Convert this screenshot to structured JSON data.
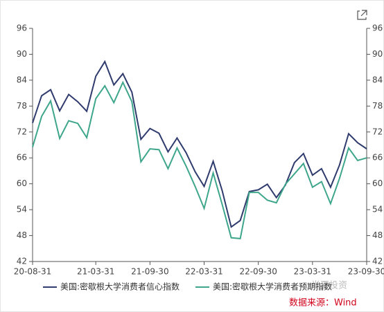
{
  "chart_data": {
    "type": "line",
    "categories": [
      "20-08-31",
      null,
      null,
      null,
      null,
      null,
      null,
      "21-03-31",
      null,
      null,
      null,
      null,
      null,
      "21-09-30",
      null,
      null,
      null,
      null,
      null,
      "22-03-31",
      null,
      null,
      null,
      null,
      null,
      "22-09-30",
      null,
      null,
      null,
      null,
      null,
      "23-03-31",
      null,
      null,
      null,
      null,
      null,
      "23-09-30"
    ],
    "series": [
      {
        "name": "美国:密歇根大学消费者信心指数",
        "color": "#2f3a6d",
        "values": [
          74.1,
          80.4,
          81.8,
          76.9,
          80.7,
          79.0,
          76.8,
          84.9,
          88.3,
          82.9,
          85.5,
          81.2,
          70.3,
          72.8,
          71.7,
          67.4,
          70.6,
          67.2,
          62.8,
          59.4,
          65.2,
          58.4,
          50.0,
          51.5,
          58.2,
          58.6,
          59.9,
          56.8,
          59.7,
          64.9,
          67.0,
          62.0,
          63.5,
          59.2,
          64.4,
          71.6,
          69.5,
          68.1
        ]
      },
      {
        "name": "美国:密歇根大学消费者预期指数",
        "color": "#3ea68b",
        "values": [
          68.5,
          75.6,
          79.2,
          70.5,
          74.6,
          74.0,
          70.7,
          79.7,
          82.7,
          78.8,
          83.5,
          79.0,
          65.1,
          68.1,
          67.9,
          63.5,
          68.3,
          64.1,
          59.4,
          54.3,
          62.5,
          55.2,
          47.5,
          47.3,
          58.0,
          58.0,
          56.2,
          55.6,
          59.9,
          62.3,
          64.7,
          59.2,
          60.5,
          55.4,
          61.3,
          68.3,
          65.4,
          66.0
        ]
      }
    ],
    "ylim": [
      42,
      96
    ],
    "yticks": [
      42,
      48,
      54,
      60,
      66,
      72,
      78,
      84,
      90,
      96
    ],
    "y2lim": [
      42,
      96
    ],
    "y2ticks": [
      42,
      48,
      54,
      60,
      66,
      72,
      78,
      84,
      90,
      96
    ],
    "source": "数据来源：Wind",
    "watermark": "半夏投资"
  }
}
